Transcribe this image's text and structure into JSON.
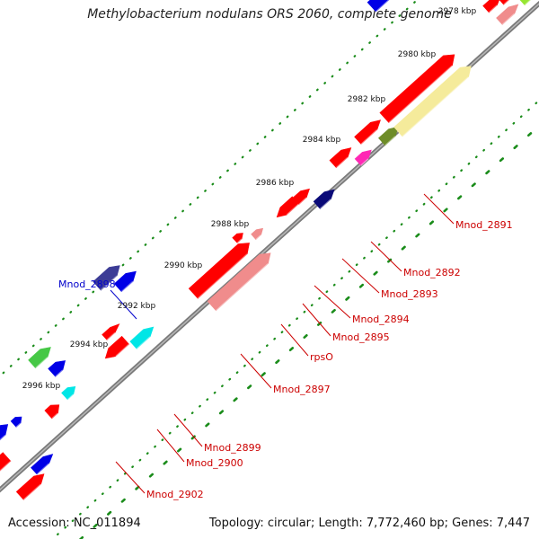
{
  "title": "Methylobacterium nodulans ORS 2060, complete genome",
  "accession": "Accession: NC_011894",
  "summary": "Topology: circular; Length: 7,772,460 bp; Genes: 7,447",
  "ticks": [
    "2978 kbp",
    "2980 kbp",
    "2982 kbp",
    "2984 kbp",
    "2986 kbp",
    "2988 kbp",
    "2990 kbp",
    "2992 kbp",
    "2994 kbp",
    "2996 kbp"
  ],
  "gene_labels": [
    "Mnod_2891",
    "Mnod_2892",
    "Mnod_2893",
    "Mnod_2894",
    "Mnod_2895",
    "rpsO",
    "Mnod_2897",
    "Mnod_2898",
    "Mnod_2899",
    "Mnod_2900",
    "Mnod_2902"
  ],
  "colors": {
    "backbone": "#8c8c8c",
    "gene_red": "#ff0000",
    "gene_pink": "#f08c8c",
    "gene_blue": "#0000e6",
    "gene_navy": "#0a0a78",
    "gene_slate": "#3c3c96",
    "gene_green": "#46c846",
    "gene_lime": "#96e632",
    "gene_olive": "#6e8c28",
    "gene_magenta": "#ff28b4",
    "gene_cyan": "#00e6e6",
    "gene_khaki": "#f5eb9b",
    "label_red": "#cc0000",
    "label_blue": "#0000cc",
    "dots": "#1a8c1a"
  }
}
